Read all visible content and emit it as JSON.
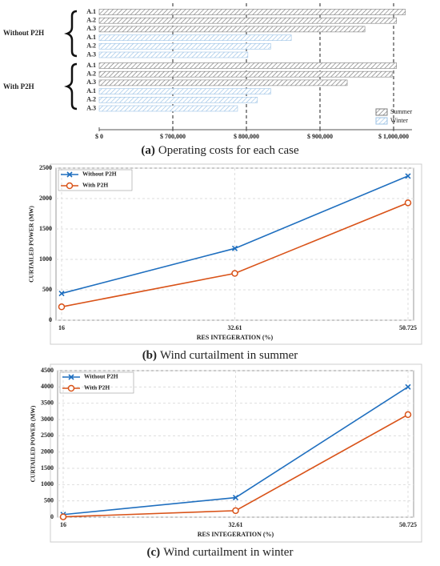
{
  "chart_data": [
    {
      "type": "bar",
      "orientation": "horizontal",
      "caption_label": "(a)",
      "caption": "Operating costs for each case",
      "xlim": [
        0,
        1025000
      ],
      "xscale": "broken",
      "xticks": [
        {
          "value": 0,
          "label": "$ 0"
        },
        {
          "value": 700000,
          "label": "$ 700,000"
        },
        {
          "value": 800000,
          "label": "$ 800,000"
        },
        {
          "value": 900000,
          "label": "$ 900,000"
        },
        {
          "value": 1000000,
          "label": "$ 1,000,000"
        }
      ],
      "grid": true,
      "legend": "lower right",
      "series": [
        {
          "name": "Summer",
          "color": "#7f7f7f"
        },
        {
          "name": "Winter",
          "color": "#9dc3e6"
        }
      ],
      "groups": [
        {
          "name": "Without P2H",
          "categories": [
            "A.1",
            "A.2",
            "A.3",
            "A.1",
            "A.2",
            "A.3"
          ],
          "values": [
            [
              1016000,
              1004000,
              961000,
              null,
              null,
              null
            ],
            [
              null,
              null,
              null,
              861000,
              833000,
              802000
            ]
          ]
        },
        {
          "name": "With P2H",
          "categories": [
            "A.1",
            "A.2",
            "A.3",
            "A.1",
            "A.2",
            "A.3"
          ],
          "values": [
            [
              1004000,
              998000,
              937000,
              null,
              null,
              null
            ],
            [
              null,
              null,
              null,
              833000,
              815000,
              788000
            ]
          ]
        }
      ]
    },
    {
      "type": "line",
      "caption_label": "(b)",
      "caption": "Wind curtailment in summer",
      "xlabel": "RES INTEGERATION (%)",
      "ylabel": "CURTAILED POWER (MW)",
      "categories": [
        "16",
        "32.61",
        "50.725"
      ],
      "ylim": [
        0,
        2500
      ],
      "yticks": [
        0,
        500,
        1000,
        1500,
        2000,
        2500
      ],
      "grid": true,
      "legend": "upper left",
      "series": [
        {
          "name": "Without P2H",
          "color": "#1f6fbf",
          "marker": "x",
          "values": [
            440,
            1180,
            2370
          ]
        },
        {
          "name": "With P2H",
          "color": "#d95319",
          "marker": "o",
          "values": [
            220,
            770,
            1930
          ]
        }
      ]
    },
    {
      "type": "line",
      "caption_label": "(c)",
      "caption": "Wind curtailment in winter",
      "xlabel": "RES INTEGERATION (%)",
      "ylabel": "CURTAILED POWER (MW)",
      "categories": [
        "16",
        "32.61",
        "50.725"
      ],
      "ylim": [
        0,
        4500
      ],
      "yticks": [
        0,
        500,
        1000,
        1500,
        2000,
        2500,
        3000,
        3500,
        4000,
        4500
      ],
      "grid": true,
      "legend": "upper left",
      "series": [
        {
          "name": "Without P2H",
          "color": "#1f6fbf",
          "marker": "x",
          "values": [
            80,
            600,
            4000
          ]
        },
        {
          "name": "With P2H",
          "color": "#d95319",
          "marker": "o",
          "values": [
            10,
            200,
            3150
          ]
        }
      ]
    }
  ]
}
